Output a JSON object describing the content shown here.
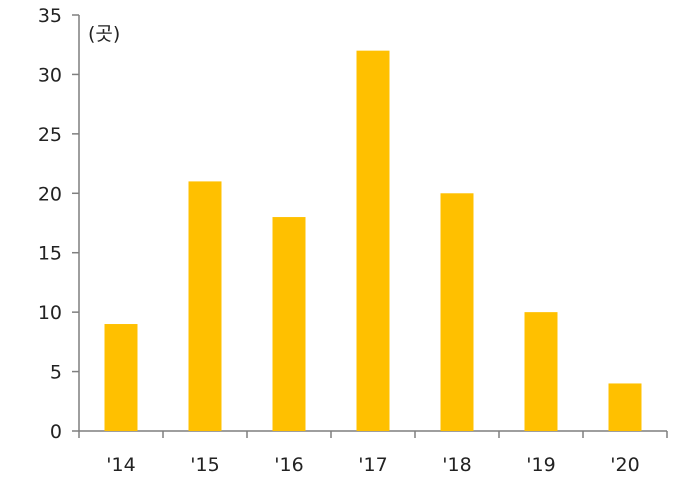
{
  "chart_data": {
    "type": "bar",
    "unit_label": "(곳)",
    "categories": [
      "'14",
      "'15",
      "'16",
      "'17",
      "'18",
      "'19",
      "'20"
    ],
    "values": [
      9,
      21,
      18,
      32,
      20,
      10,
      4
    ],
    "ylim": [
      0,
      35
    ],
    "yticks": [
      0,
      5,
      10,
      15,
      20,
      25,
      30,
      35
    ],
    "bar_color": "#ffc000",
    "axis_color": "#7f7f7f",
    "grid": false,
    "legend": "none"
  }
}
